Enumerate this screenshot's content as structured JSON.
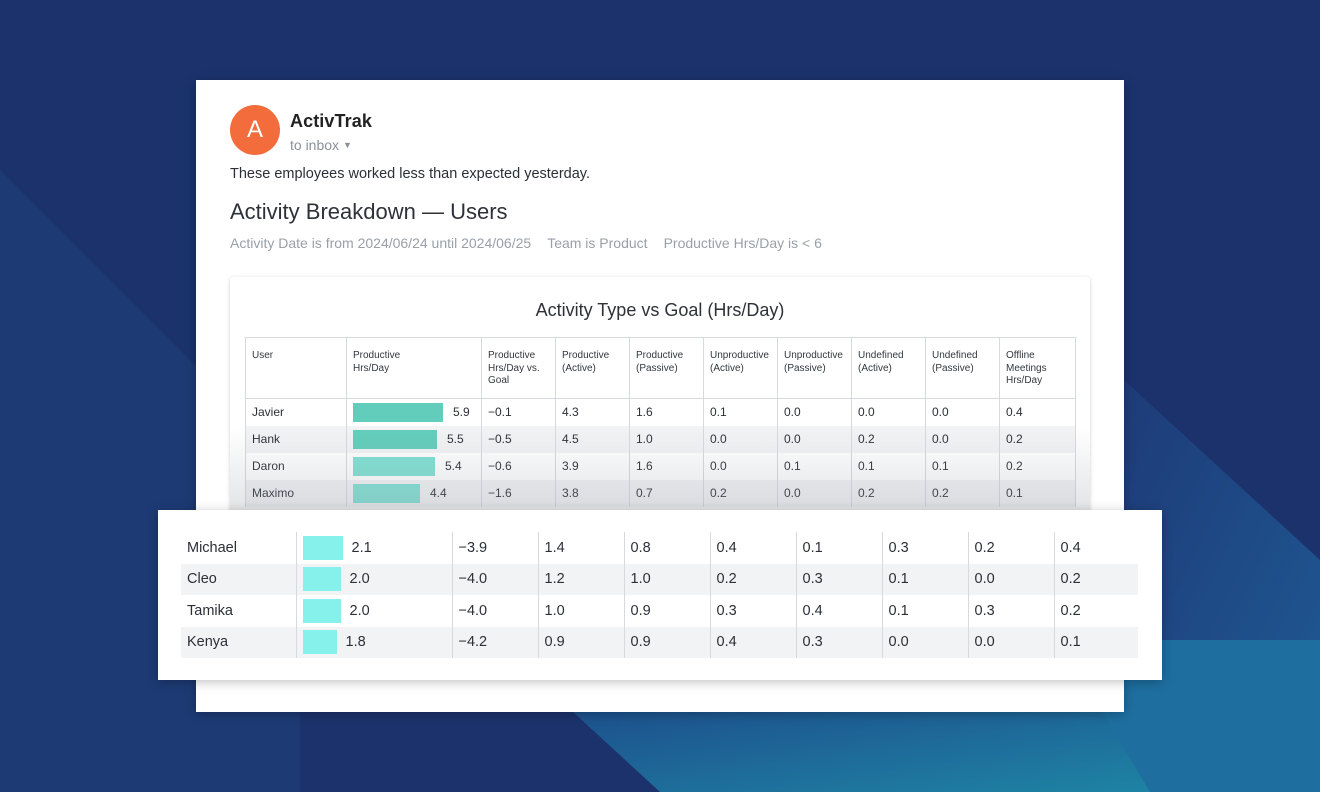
{
  "email": {
    "avatar_letter": "A",
    "sender": "ActivTrak",
    "recipient": "to inbox",
    "intro": "These employees worked less than expected yesterday.",
    "report_title": "Activity Breakdown — Users",
    "filters": [
      "Activity Date is from 2024/06/24 until 2024/06/25",
      "Team is Product",
      "Productive Hrs/Day is < 6"
    ]
  },
  "chart": {
    "title": "Activity Type vs Goal (Hrs/Day)",
    "headers": [
      "User",
      "Productive\nHrs/Day",
      "Productive\nHrs/Day vs.\nGoal",
      "Productive\n(Active)",
      "Productive\n(Passive)",
      "Unproductive\n(Active)",
      "Unproductive\n(Passive)",
      "Undefined\n(Active)",
      "Undefined\n(Passive)",
      "Offline\nMeetings\nHrs/Day"
    ],
    "rows": [
      {
        "user": "Javier",
        "productive": "5.9",
        "vs_goal": "−0.1",
        "prod_active": "4.3",
        "prod_passive": "1.6",
        "unprod_active": "0.1",
        "unprod_passive": "0.0",
        "undef_active": "0.0",
        "undef_passive": "0.0",
        "offline": "0.4"
      },
      {
        "user": "Hank",
        "productive": "5.5",
        "vs_goal": "−0.5",
        "prod_active": "4.5",
        "prod_passive": "1.0",
        "unprod_active": "0.0",
        "unprod_passive": "0.0",
        "undef_active": "0.2",
        "undef_passive": "0.0",
        "offline": "0.2"
      },
      {
        "user": "Daron",
        "productive": "5.4",
        "vs_goal": "−0.6",
        "prod_active": "3.9",
        "prod_passive": "1.6",
        "unprod_active": "0.0",
        "unprod_passive": "0.1",
        "undef_active": "0.1",
        "undef_passive": "0.1",
        "offline": "0.2"
      },
      {
        "user": "Maximo",
        "productive": "4.4",
        "vs_goal": "−1.6",
        "prod_active": "3.8",
        "prod_passive": "0.7",
        "unprod_active": "0.2",
        "unprod_passive": "0.0",
        "undef_active": "0.2",
        "undef_passive": "0.2",
        "offline": "0.1"
      }
    ]
  },
  "zoom": {
    "rows": [
      {
        "user": "Michael",
        "productive": "2.1",
        "vs_goal": "−3.9",
        "prod_active": "1.4",
        "prod_passive": "0.8",
        "unprod_active": "0.4",
        "unprod_passive": "0.1",
        "undef_active": "0.3",
        "undef_passive": "0.2",
        "offline": "0.4"
      },
      {
        "user": "Cleo",
        "productive": "2.0",
        "vs_goal": "−4.0",
        "prod_active": "1.2",
        "prod_passive": "1.0",
        "unprod_active": "0.2",
        "unprod_passive": "0.3",
        "undef_active": "0.1",
        "undef_passive": "0.0",
        "offline": "0.2"
      },
      {
        "user": "Tamika",
        "productive": "2.0",
        "vs_goal": "−4.0",
        "prod_active": "1.0",
        "prod_passive": "0.9",
        "unprod_active": "0.3",
        "unprod_passive": "0.4",
        "undef_active": "0.1",
        "undef_passive": "0.3",
        "offline": "0.2"
      },
      {
        "user": "Kenya",
        "productive": "1.8",
        "vs_goal": "−4.2",
        "prod_active": "0.9",
        "prod_passive": "0.9",
        "unprod_active": "0.4",
        "unprod_passive": "0.3",
        "undef_active": "0.0",
        "undef_passive": "0.0",
        "offline": "0.1"
      }
    ]
  },
  "colors": {
    "background": "#1b326c",
    "avatar": "#f26c3c",
    "negative": "#f25a32",
    "bar": "#62cdbb",
    "bar_light": "#86f1ea"
  }
}
